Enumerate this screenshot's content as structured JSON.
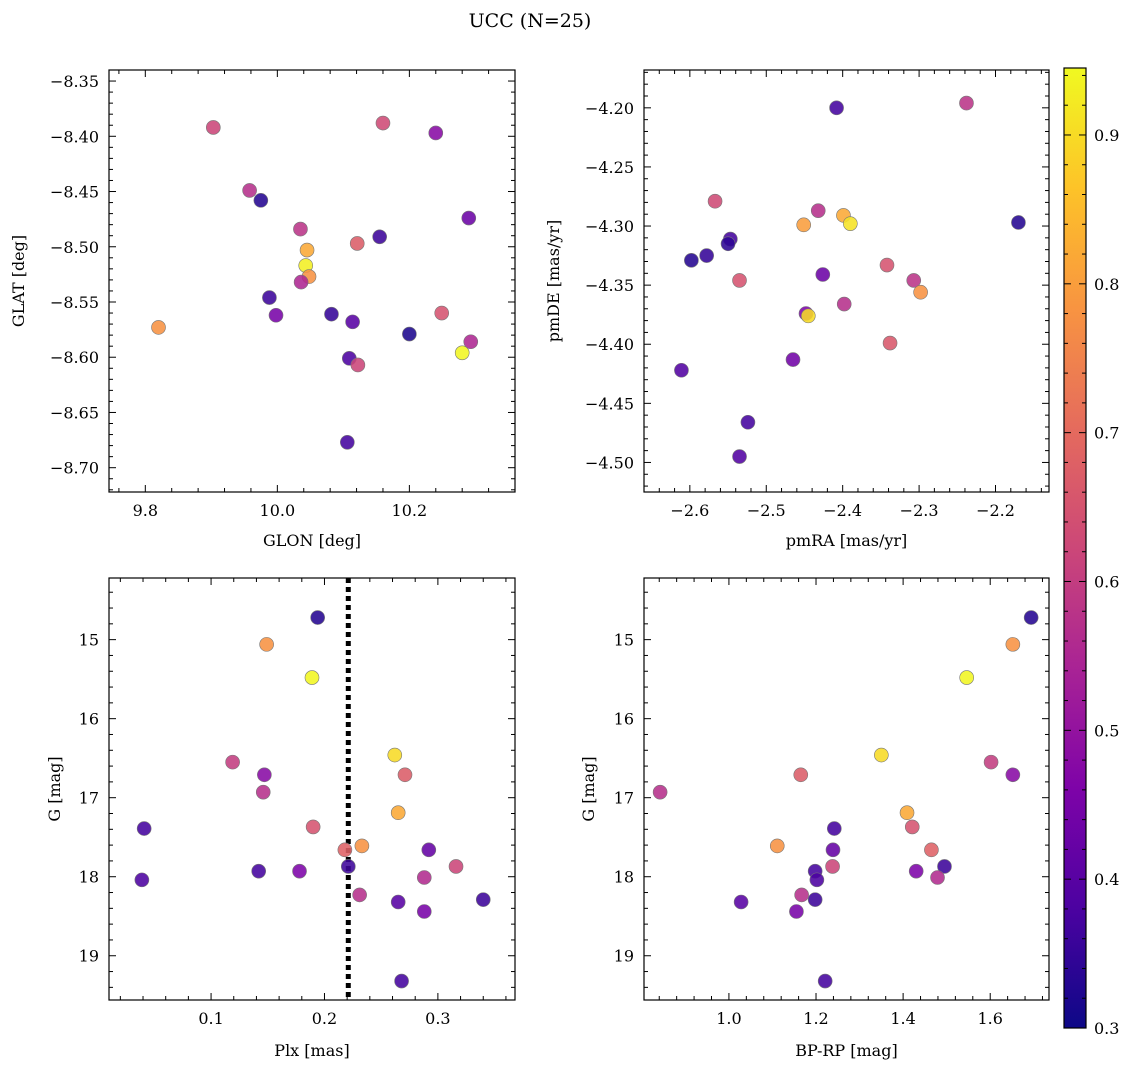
{
  "figure": {
    "title": "UCC (N=25)"
  },
  "colorbar": {
    "colormap": "plasma",
    "range": [
      0.3,
      0.945
    ],
    "ticks": [
      0.3,
      0.4,
      0.5,
      0.6,
      0.7,
      0.8,
      0.9
    ],
    "tick_labels": [
      "0.3",
      "0.4",
      "0.5",
      "0.6",
      "0.7",
      "0.8",
      "0.9"
    ]
  },
  "chart_data": [
    {
      "type": "scatter",
      "panel": "top-left",
      "xlabel": "GLON [deg]",
      "ylabel": "GLAT [deg]",
      "xlim": [
        9.745,
        10.36
      ],
      "ylim": [
        -8.722,
        -8.34
      ],
      "y_inverted": false,
      "xticks": [
        9.8,
        10.0,
        10.2
      ],
      "xtick_labels": [
        "9.8",
        "10.0",
        "10.2"
      ],
      "yticks": [
        -8.35,
        -8.4,
        -8.45,
        -8.5,
        -8.55,
        -8.6,
        -8.65,
        -8.7
      ],
      "ytick_labels": [
        "−8.35",
        "−8.40",
        "−8.45",
        "−8.50",
        "−8.55",
        "−8.60",
        "−8.65",
        "−8.70"
      ],
      "points": [
        {
          "x": 9.903,
          "y": -8.392,
          "c": 0.62
        },
        {
          "x": 10.16,
          "y": -8.388,
          "c": 0.63
        },
        {
          "x": 10.24,
          "y": -8.397,
          "c": 0.48
        },
        {
          "x": 9.958,
          "y": -8.449,
          "c": 0.57
        },
        {
          "x": 9.975,
          "y": -8.458,
          "c": 0.33
        },
        {
          "x": 10.29,
          "y": -8.474,
          "c": 0.43
        },
        {
          "x": 10.035,
          "y": -8.484,
          "c": 0.58
        },
        {
          "x": 10.121,
          "y": -8.497,
          "c": 0.67
        },
        {
          "x": 10.155,
          "y": -8.491,
          "c": 0.36
        },
        {
          "x": 10.045,
          "y": -8.503,
          "c": 0.82
        },
        {
          "x": 10.043,
          "y": -8.517,
          "c": 0.93
        },
        {
          "x": 10.048,
          "y": -8.527,
          "c": 0.78
        },
        {
          "x": 10.036,
          "y": -8.532,
          "c": 0.55
        },
        {
          "x": 9.988,
          "y": -8.546,
          "c": 0.36
        },
        {
          "x": 9.82,
          "y": -8.573,
          "c": 0.78
        },
        {
          "x": 9.998,
          "y": -8.562,
          "c": 0.45
        },
        {
          "x": 10.082,
          "y": -8.561,
          "c": 0.35
        },
        {
          "x": 10.114,
          "y": -8.568,
          "c": 0.4
        },
        {
          "x": 10.249,
          "y": -8.56,
          "c": 0.65
        },
        {
          "x": 10.2,
          "y": -8.579,
          "c": 0.32
        },
        {
          "x": 10.293,
          "y": -8.586,
          "c": 0.55
        },
        {
          "x": 10.28,
          "y": -8.596,
          "c": 0.94
        },
        {
          "x": 10.109,
          "y": -8.601,
          "c": 0.38
        },
        {
          "x": 10.122,
          "y": -8.607,
          "c": 0.62
        },
        {
          "x": 10.106,
          "y": -8.677,
          "c": 0.37
        }
      ]
    },
    {
      "type": "scatter",
      "panel": "top-right",
      "xlabel": "pmRA [mas/yr]",
      "ylabel": "pmDE [mas/yr]",
      "xlim": [
        -2.66,
        -2.13
      ],
      "ylim": [
        -4.525,
        -4.168
      ],
      "y_inverted": false,
      "xticks": [
        -2.6,
        -2.5,
        -2.4,
        -2.3,
        -2.2
      ],
      "xtick_labels": [
        "−2.6",
        "−2.5",
        "−2.4",
        "−2.3",
        "−2.2"
      ],
      "yticks": [
        -4.2,
        -4.25,
        -4.3,
        -4.35,
        -4.4,
        -4.45,
        -4.5
      ],
      "ytick_labels": [
        "−4.20",
        "−4.25",
        "−4.30",
        "−4.35",
        "−4.40",
        "−4.45",
        "−4.50"
      ],
      "points": [
        {
          "x": -2.408,
          "y": -4.2,
          "c": 0.37
        },
        {
          "x": -2.238,
          "y": -4.196,
          "c": 0.58
        },
        {
          "x": -2.567,
          "y": -4.279,
          "c": 0.63
        },
        {
          "x": -2.432,
          "y": -4.287,
          "c": 0.57
        },
        {
          "x": -2.451,
          "y": -4.299,
          "c": 0.8
        },
        {
          "x": -2.399,
          "y": -4.291,
          "c": 0.82
        },
        {
          "x": -2.39,
          "y": -4.298,
          "c": 0.91
        },
        {
          "x": -2.17,
          "y": -4.297,
          "c": 0.33
        },
        {
          "x": -2.547,
          "y": -4.311,
          "c": 0.37
        },
        {
          "x": -2.55,
          "y": -4.315,
          "c": 0.34
        },
        {
          "x": -2.578,
          "y": -4.325,
          "c": 0.35
        },
        {
          "x": -2.598,
          "y": -4.329,
          "c": 0.33
        },
        {
          "x": -2.342,
          "y": -4.333,
          "c": 0.65
        },
        {
          "x": -2.426,
          "y": -4.341,
          "c": 0.43
        },
        {
          "x": -2.535,
          "y": -4.346,
          "c": 0.65
        },
        {
          "x": -2.307,
          "y": -4.346,
          "c": 0.58
        },
        {
          "x": -2.298,
          "y": -4.356,
          "c": 0.78
        },
        {
          "x": -2.398,
          "y": -4.366,
          "c": 0.57
        },
        {
          "x": -2.448,
          "y": -4.374,
          "c": 0.46
        },
        {
          "x": -2.445,
          "y": -4.376,
          "c": 0.9
        },
        {
          "x": -2.338,
          "y": -4.399,
          "c": 0.66
        },
        {
          "x": -2.465,
          "y": -4.413,
          "c": 0.44
        },
        {
          "x": -2.611,
          "y": -4.422,
          "c": 0.39
        },
        {
          "x": -2.524,
          "y": -4.466,
          "c": 0.37
        },
        {
          "x": -2.535,
          "y": -4.495,
          "c": 0.39
        }
      ]
    },
    {
      "type": "scatter",
      "panel": "bottom-left",
      "xlabel": "Plx [mas]",
      "ylabel": "G [mag]",
      "xlim": [
        0.01,
        0.368
      ],
      "ylim": [
        14.22,
        19.56
      ],
      "y_inverted": true,
      "xticks": [
        0.1,
        0.2,
        0.3
      ],
      "xtick_labels": [
        "0.1",
        "0.2",
        "0.3"
      ],
      "yticks": [
        15,
        16,
        17,
        18,
        19
      ],
      "ytick_labels": [
        "15",
        "16",
        "17",
        "18",
        "19"
      ],
      "vline": {
        "x": 0.221,
        "style": "dotted"
      },
      "points": [
        {
          "x": 0.194,
          "y": 14.72,
          "c": 0.33
        },
        {
          "x": 0.149,
          "y": 15.06,
          "c": 0.78
        },
        {
          "x": 0.189,
          "y": 15.48,
          "c": 0.94
        },
        {
          "x": 0.262,
          "y": 16.46,
          "c": 0.9
        },
        {
          "x": 0.119,
          "y": 16.55,
          "c": 0.6
        },
        {
          "x": 0.147,
          "y": 16.71,
          "c": 0.48
        },
        {
          "x": 0.271,
          "y": 16.71,
          "c": 0.67
        },
        {
          "x": 0.146,
          "y": 16.93,
          "c": 0.57
        },
        {
          "x": 0.265,
          "y": 17.19,
          "c": 0.82
        },
        {
          "x": 0.041,
          "y": 17.39,
          "c": 0.37
        },
        {
          "x": 0.19,
          "y": 17.37,
          "c": 0.65
        },
        {
          "x": 0.233,
          "y": 17.61,
          "c": 0.78
        },
        {
          "x": 0.218,
          "y": 17.66,
          "c": 0.68
        },
        {
          "x": 0.292,
          "y": 17.66,
          "c": 0.42
        },
        {
          "x": 0.221,
          "y": 17.87,
          "c": 0.36
        },
        {
          "x": 0.316,
          "y": 17.87,
          "c": 0.62
        },
        {
          "x": 0.142,
          "y": 17.93,
          "c": 0.37
        },
        {
          "x": 0.178,
          "y": 17.93,
          "c": 0.46
        },
        {
          "x": 0.288,
          "y": 18.01,
          "c": 0.56
        },
        {
          "x": 0.039,
          "y": 18.04,
          "c": 0.38
        },
        {
          "x": 0.231,
          "y": 18.23,
          "c": 0.57
        },
        {
          "x": 0.265,
          "y": 18.32,
          "c": 0.4
        },
        {
          "x": 0.34,
          "y": 18.29,
          "c": 0.36
        },
        {
          "x": 0.288,
          "y": 18.44,
          "c": 0.45
        },
        {
          "x": 0.268,
          "y": 19.32,
          "c": 0.37
        }
      ]
    },
    {
      "type": "scatter",
      "panel": "bottom-right",
      "xlabel": "BP-RP [mag]",
      "ylabel": "G [mag]",
      "xlim": [
        0.805,
        1.735
      ],
      "ylim": [
        14.22,
        19.56
      ],
      "y_inverted": true,
      "xticks": [
        1.0,
        1.2,
        1.4,
        1.6
      ],
      "xtick_labels": [
        "1.0",
        "1.2",
        "1.4",
        "1.6"
      ],
      "yticks": [
        15,
        16,
        17,
        18,
        19
      ],
      "ytick_labels": [
        "15",
        "16",
        "17",
        "18",
        "19"
      ],
      "points": [
        {
          "x": 1.694,
          "y": 14.72,
          "c": 0.33
        },
        {
          "x": 1.652,
          "y": 15.06,
          "c": 0.78
        },
        {
          "x": 1.546,
          "y": 15.48,
          "c": 0.94
        },
        {
          "x": 1.35,
          "y": 16.46,
          "c": 0.9
        },
        {
          "x": 1.602,
          "y": 16.55,
          "c": 0.6
        },
        {
          "x": 1.652,
          "y": 16.71,
          "c": 0.48
        },
        {
          "x": 1.165,
          "y": 16.71,
          "c": 0.67
        },
        {
          "x": 0.842,
          "y": 16.93,
          "c": 0.57
        },
        {
          "x": 1.409,
          "y": 17.19,
          "c": 0.82
        },
        {
          "x": 1.242,
          "y": 17.39,
          "c": 0.37
        },
        {
          "x": 1.421,
          "y": 17.37,
          "c": 0.65
        },
        {
          "x": 1.111,
          "y": 17.61,
          "c": 0.78
        },
        {
          "x": 1.465,
          "y": 17.66,
          "c": 0.68
        },
        {
          "x": 1.239,
          "y": 17.66,
          "c": 0.42
        },
        {
          "x": 1.495,
          "y": 17.87,
          "c": 0.36
        },
        {
          "x": 1.238,
          "y": 17.87,
          "c": 0.62
        },
        {
          "x": 1.198,
          "y": 17.93,
          "c": 0.37
        },
        {
          "x": 1.43,
          "y": 17.93,
          "c": 0.46
        },
        {
          "x": 1.479,
          "y": 18.01,
          "c": 0.56
        },
        {
          "x": 1.202,
          "y": 18.04,
          "c": 0.38
        },
        {
          "x": 1.167,
          "y": 18.23,
          "c": 0.57
        },
        {
          "x": 1.028,
          "y": 18.32,
          "c": 0.4
        },
        {
          "x": 1.198,
          "y": 18.29,
          "c": 0.36
        },
        {
          "x": 1.155,
          "y": 18.44,
          "c": 0.45
        },
        {
          "x": 1.221,
          "y": 19.32,
          "c": 0.37
        }
      ]
    }
  ]
}
